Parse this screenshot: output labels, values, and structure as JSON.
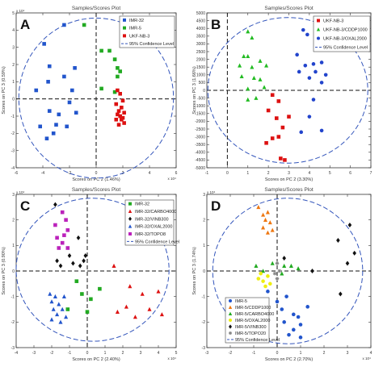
{
  "chart_data": [
    {
      "type": "scatter",
      "panel_label": "A",
      "title": "Samples/Scores Plot",
      "xlabel": "Scores on PC 2 (1.46%)",
      "ylabel": "Scores on PC 3 (0.59%)",
      "x_multiplier": "x 10⁴",
      "y_multiplier": "x 10⁴",
      "xlim": [
        -6,
        6
      ],
      "ylim": [
        -4,
        5
      ],
      "xticks": [
        -6,
        -4,
        -2,
        0,
        2,
        4,
        6
      ],
      "yticks": [
        -4,
        -3,
        -2,
        -1,
        0,
        1,
        2,
        3,
        4,
        5
      ],
      "ellipse": {
        "cx": 0,
        "cy": 0.05,
        "rx": 5.8,
        "ry": 4.65
      },
      "legend_position": "top-right",
      "confidence_label": "95% Confidence Level",
      "series": [
        {
          "name": "IMR-32",
          "color": "#2255cc",
          "marker": "square",
          "points": [
            [
              -2.4,
              4.3
            ],
            [
              -3.9,
              3.2
            ],
            [
              -3.5,
              1.9
            ],
            [
              -1.6,
              1.8
            ],
            [
              -2.4,
              1.3
            ],
            [
              -1.8,
              0.5
            ],
            [
              -3.6,
              1.0
            ],
            [
              -4.5,
              0.5
            ],
            [
              -2.0,
              -0.2
            ],
            [
              -3.5,
              -0.7
            ],
            [
              -1.5,
              -0.8
            ],
            [
              -2.8,
              -0.9
            ],
            [
              -3.0,
              -1.5
            ],
            [
              -2.2,
              -1.6
            ],
            [
              -4.2,
              -1.6
            ],
            [
              -3.2,
              -2.0
            ],
            [
              -3.7,
              -2.3
            ]
          ]
        },
        {
          "name": "IMR-5",
          "color": "#22aa22",
          "marker": "square",
          "points": [
            [
              -0.9,
              4.3
            ],
            [
              0.4,
              2.8
            ],
            [
              1.0,
              2.8
            ],
            [
              1.4,
              2.3
            ],
            [
              1.6,
              1.8
            ],
            [
              1.8,
              1.6
            ],
            [
              1.6,
              1.3
            ],
            [
              0.4,
              0.6
            ],
            [
              1.4,
              0.4
            ]
          ]
        },
        {
          "name": "UKF-NB-3",
          "color": "#dd1111",
          "marker": "square",
          "points": [
            [
              1.6,
              0.5
            ],
            [
              1.8,
              0.3
            ],
            [
              2.0,
              -0.1
            ],
            [
              1.5,
              -0.3
            ],
            [
              1.9,
              -0.5
            ],
            [
              1.7,
              -0.7
            ],
            [
              2.1,
              -0.8
            ],
            [
              1.6,
              -0.9
            ],
            [
              1.8,
              -1.0
            ],
            [
              2.0,
              -1.1
            ],
            [
              1.5,
              -1.2
            ],
            [
              1.9,
              -1.2
            ],
            [
              2.1,
              -1.4
            ],
            [
              1.7,
              -1.5
            ]
          ]
        }
      ]
    },
    {
      "type": "scatter",
      "panel_label": "B",
      "title": "Samples/Scores Plot",
      "xlabel": "Scores on PC 2 (3.30%)",
      "ylabel": "Scores on PC 3 (1.66%)",
      "xlim": [
        -1,
        7
      ],
      "ylim": [
        -5000,
        5000
      ],
      "xticks": [
        -1,
        0,
        1,
        2,
        3,
        4,
        5,
        6,
        7
      ],
      "yticks": [
        -5000,
        -4500,
        -4000,
        -3500,
        -3000,
        -2500,
        -2000,
        -1500,
        -1000,
        -500,
        0,
        500,
        1000,
        1500,
        2000,
        2500,
        3000,
        3500,
        4000,
        4500,
        5000
      ],
      "ellipse": {
        "cx": 2.95,
        "cy": 0,
        "rx": 3.9,
        "ry": 4700
      },
      "legend_position": "top-right",
      "confidence_label": "95% Confidence Level",
      "series": [
        {
          "name": "UKF-NB-3",
          "color": "#dd1111",
          "marker": "square",
          "points": [
            [
              2.2,
              -300
            ],
            [
              2.5,
              -700
            ],
            [
              2.0,
              -1300
            ],
            [
              2.4,
              -1800
            ],
            [
              3.0,
              -1700
            ],
            [
              2.7,
              -2400
            ],
            [
              2.2,
              -3100
            ],
            [
              2.5,
              -3000
            ],
            [
              2.6,
              -4400
            ],
            [
              2.8,
              -4500
            ],
            [
              1.9,
              -3400
            ]
          ]
        },
        {
          "name": "UKF-NB-3/CDDP1000",
          "color": "#22bb22",
          "marker": "triangle",
          "points": [
            [
              1.0,
              3800
            ],
            [
              1.2,
              3400
            ],
            [
              0.8,
              2200
            ],
            [
              1.0,
              2200
            ],
            [
              1.6,
              1900
            ],
            [
              0.6,
              1600
            ],
            [
              1.2,
              1500
            ],
            [
              1.9,
              1600
            ],
            [
              0.7,
              900
            ],
            [
              1.3,
              800
            ],
            [
              1.6,
              700
            ],
            [
              1.0,
              100
            ],
            [
              1.4,
              -500
            ],
            [
              1.0,
              -600
            ],
            [
              1.8,
              200
            ]
          ]
        },
        {
          "name": "UKF-NB-3/OXAL2000",
          "color": "#2244cc",
          "marker": "circle",
          "points": [
            [
              3.7,
              3900
            ],
            [
              3.9,
              3600
            ],
            [
              3.4,
              2300
            ],
            [
              3.8,
              1600
            ],
            [
              4.2,
              1700
            ],
            [
              4.6,
              1800
            ],
            [
              3.5,
              1200
            ],
            [
              4.3,
              1200
            ],
            [
              4.0,
              800
            ],
            [
              4.6,
              500
            ],
            [
              4.8,
              1000
            ],
            [
              4.2,
              -600
            ],
            [
              4.0,
              -1700
            ],
            [
              3.6,
              -2700
            ],
            [
              4.6,
              -2600
            ]
          ]
        }
      ]
    },
    {
      "type": "scatter",
      "panel_label": "C",
      "title": "Samples/Scores Plot",
      "xlabel": "Scores on PC 2 (2.40%)",
      "ylabel": "Scores on PC 3 (0.90%)",
      "x_multiplier": "x 10⁴",
      "y_multiplier": "x 10⁴",
      "xlim": [
        -4,
        5
      ],
      "ylim": [
        -3,
        3
      ],
      "xticks": [
        -4,
        -3,
        -2,
        -1,
        0,
        1,
        2,
        3,
        4,
        5
      ],
      "yticks": [
        -3,
        -2,
        -1,
        0,
        1,
        2,
        3
      ],
      "ellipse": {
        "cx": 0.3,
        "cy": 0.05,
        "rx": 4.3,
        "ry": 2.8
      },
      "legend_position": "top-right",
      "confidence_label": "95% Confidence Level",
      "series": [
        {
          "name": "IMR-32",
          "color": "#22aa22",
          "marker": "square",
          "points": [
            [
              -0.6,
              -0.4
            ],
            [
              -0.3,
              -0.9
            ],
            [
              0.2,
              -1.1
            ],
            [
              -1.1,
              -1.5
            ],
            [
              0.0,
              -1.6
            ],
            [
              0.7,
              -0.7
            ]
          ]
        },
        {
          "name": "IMR-32/CARBO4000",
          "color": "#dd1111",
          "marker": "triangle",
          "points": [
            [
              1.5,
              0.2
            ],
            [
              2.4,
              -0.6
            ],
            [
              3.1,
              -0.9
            ],
            [
              4.0,
              -0.8
            ],
            [
              2.2,
              -1.4
            ],
            [
              3.5,
              -1.5
            ],
            [
              1.7,
              -1.6
            ],
            [
              4.2,
              -1.7
            ],
            [
              2.7,
              -1.8
            ]
          ]
        },
        {
          "name": "IMR-32/VINB300",
          "color": "#111111",
          "marker": "diamond",
          "points": [
            [
              -1.8,
              2.6
            ],
            [
              -0.5,
              1.3
            ],
            [
              -1.0,
              0.6
            ],
            [
              -0.8,
              0.3
            ],
            [
              -0.2,
              0.4
            ],
            [
              -1.5,
              0.2
            ],
            [
              -0.4,
              0.2
            ],
            [
              -1.7,
              0.4
            ],
            [
              -0.1,
              0.6
            ]
          ]
        },
        {
          "name": "IMR-32/OXAL2000",
          "color": "#2255cc",
          "marker": "triangle",
          "points": [
            [
              -2.1,
              -0.9
            ],
            [
              -1.8,
              -1.0
            ],
            [
              -1.3,
              -1.0
            ],
            [
              -2.0,
              -1.2
            ],
            [
              -1.6,
              -1.3
            ],
            [
              -1.4,
              -1.5
            ],
            [
              -1.9,
              -1.5
            ],
            [
              -1.7,
              -1.7
            ],
            [
              -1.2,
              -1.8
            ],
            [
              -2.0,
              -1.9
            ],
            [
              -1.5,
              -2.0
            ]
          ]
        },
        {
          "name": "IMR-32/TOPO8",
          "color": "#bb22bb",
          "marker": "square",
          "points": [
            [
              -1.4,
              2.3
            ],
            [
              -1.2,
              2.0
            ],
            [
              -1.8,
              1.8
            ],
            [
              -1.1,
              1.6
            ],
            [
              -1.3,
              1.4
            ],
            [
              -1.7,
              1.3
            ],
            [
              -1.4,
              1.1
            ],
            [
              -1.1,
              0.9
            ],
            [
              -1.6,
              0.9
            ]
          ]
        }
      ]
    },
    {
      "type": "scatter",
      "panel_label": "D",
      "title": "Samples/Scores Plot",
      "xlabel": "Scores on PC 2 (2.70%)",
      "ylabel": "Scores on PC 3 (1.74%)",
      "x_multiplier": "x 10⁴",
      "y_multiplier": "x 10⁴",
      "xlim": [
        -3,
        4
      ],
      "ylim": [
        -3,
        3
      ],
      "xticks": [
        -3,
        -2,
        -1,
        0,
        1,
        2,
        3,
        4
      ],
      "yticks": [
        -3,
        -2,
        -1,
        0,
        1,
        2,
        3
      ],
      "ellipse": {
        "cx": 0.45,
        "cy": 0.0,
        "rx": 3.2,
        "ry": 2.85
      },
      "legend_position": "bottom-left",
      "confidence_label": "95% Confidence Level",
      "series": [
        {
          "name": "IMR-5",
          "color": "#2255cc",
          "marker": "circle",
          "points": [
            [
              0.0,
              -1.2
            ],
            [
              0.4,
              -1.0
            ],
            [
              -0.4,
              -0.8
            ],
            [
              0.2,
              -1.5
            ],
            [
              0.7,
              -1.7
            ],
            [
              0.9,
              -1.8
            ],
            [
              0.3,
              -2.0
            ],
            [
              1.0,
              -2.1
            ],
            [
              0.7,
              -2.3
            ],
            [
              0.5,
              -2.5
            ],
            [
              1.0,
              -2.6
            ],
            [
              1.3,
              -1.4
            ]
          ]
        },
        {
          "name": "IMR-5/CDDP1000",
          "color": "#ee7711",
          "marker": "triangle",
          "points": [
            [
              -0.8,
              2.5
            ],
            [
              -0.6,
              2.2
            ],
            [
              -0.4,
              2.3
            ],
            [
              -0.5,
              2.0
            ],
            [
              -0.3,
              1.9
            ],
            [
              -0.6,
              1.7
            ],
            [
              -0.2,
              1.6
            ],
            [
              -0.4,
              1.5
            ]
          ]
        },
        {
          "name": "IMR-5/CARBO4000",
          "color": "#22aa22",
          "marker": "triangle",
          "points": [
            [
              -0.9,
              0.2
            ],
            [
              -0.6,
              0.0
            ],
            [
              -0.2,
              0.3
            ],
            [
              0.3,
              0.2
            ],
            [
              0.6,
              0.2
            ],
            [
              0.9,
              0.1
            ],
            [
              0.2,
              -0.1
            ]
          ]
        },
        {
          "name": "IMR-5/OXAL2000",
          "color": "#eeee11",
          "marker": "circle",
          "points": [
            [
              -0.7,
              -0.1
            ],
            [
              -0.4,
              -0.2
            ],
            [
              -0.6,
              -0.4
            ],
            [
              -0.3,
              -0.5
            ],
            [
              -0.8,
              -0.3
            ],
            [
              -0.5,
              -0.6
            ]
          ]
        },
        {
          "name": "IMR-5/VINB300",
          "color": "#111111",
          "marker": "diamond",
          "points": [
            [
              3.1,
              1.8
            ],
            [
              2.6,
              1.2
            ],
            [
              3.3,
              0.7
            ],
            [
              3.0,
              0.3
            ],
            [
              1.5,
              0.0
            ],
            [
              2.7,
              -0.9
            ],
            [
              0.3,
              0.5
            ]
          ]
        },
        {
          "name": "IMR-5/TOPO20",
          "color": "#888888",
          "marker": "star",
          "points": [
            [
              0.0,
              0.3
            ],
            [
              0.1,
              0.0
            ],
            [
              -0.1,
              -0.1
            ],
            [
              0.0,
              -0.3
            ]
          ]
        }
      ]
    }
  ]
}
